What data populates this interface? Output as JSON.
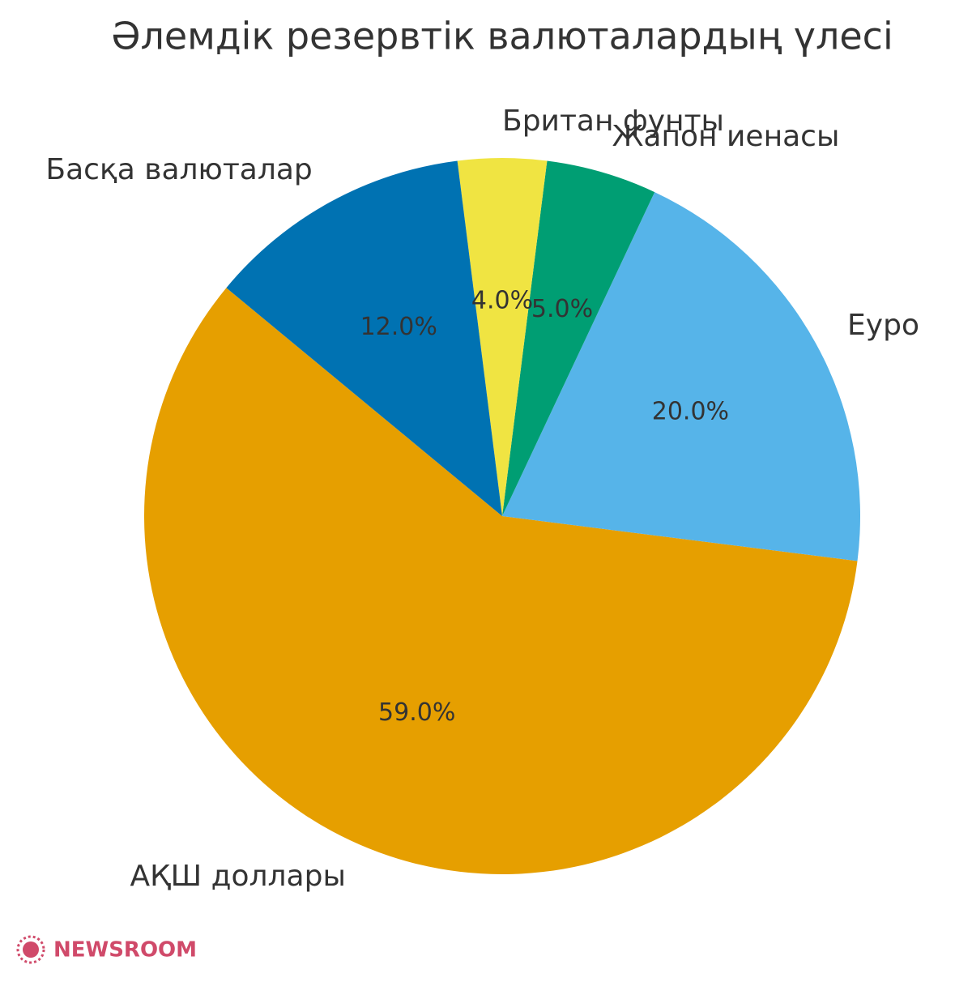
{
  "chart_data": {
    "type": "pie",
    "title": "Әлемдік резервтік валюталардың үлесі",
    "categories": [
      "АҚШ доллары",
      "Еуро",
      "Жапон иенасы",
      "Британ фунты",
      "Басқа валюталар"
    ],
    "values": [
      59.0,
      20.0,
      5.0,
      4.0,
      12.0
    ],
    "value_labels": [
      "59.0%",
      "20.0%",
      "5.0%",
      "4.0%",
      "12.0%"
    ],
    "colors": [
      "#E69F00",
      "#56B4E9",
      "#009E73",
      "#F0E442",
      "#0072B2"
    ]
  },
  "watermark": "NEWSROOM"
}
